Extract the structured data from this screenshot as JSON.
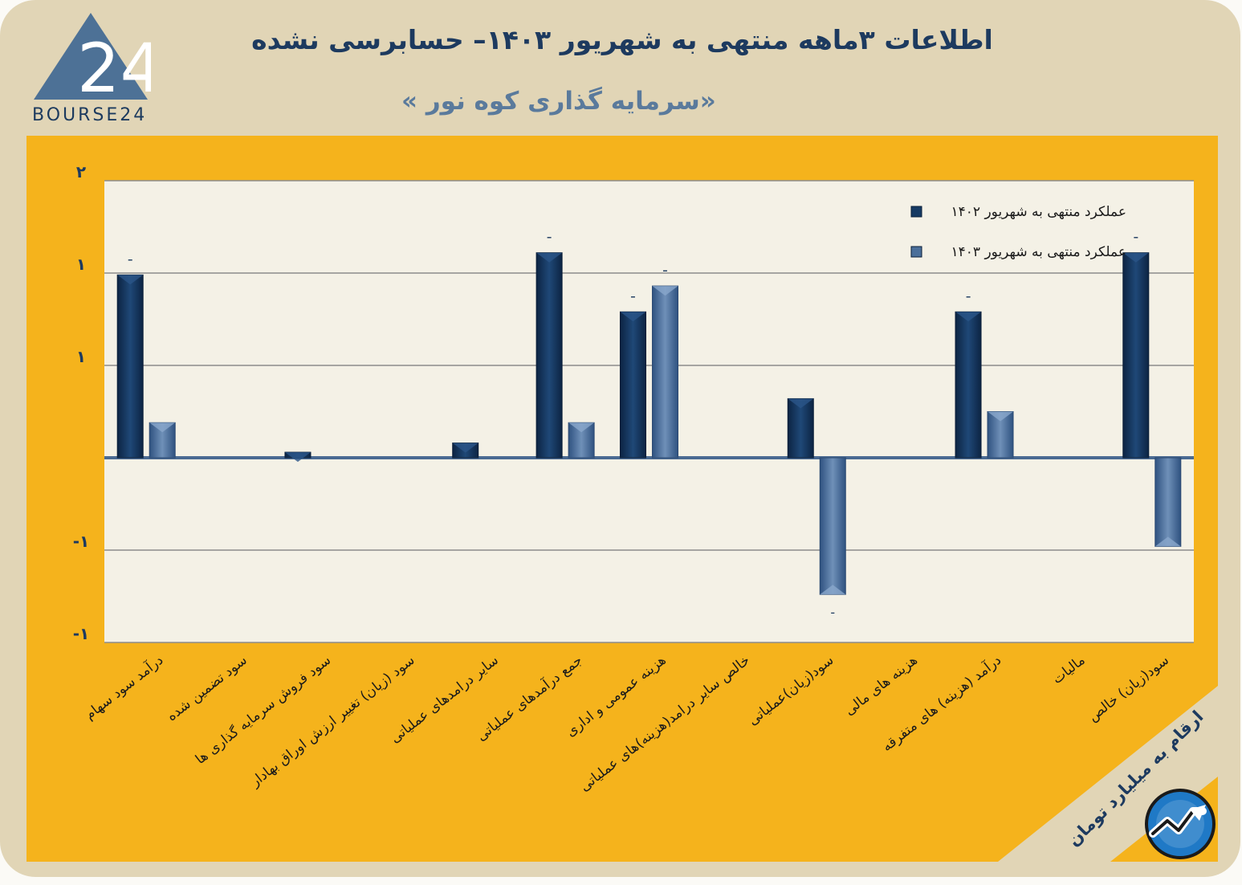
{
  "header": {
    "title": "اطلاعات ۳ماهه منتهی به شهریور ۱۴۰۳– حسابرسی نشده",
    "subtitle": "«سرمایه گذاری کوه نور »",
    "logo_text": "BOURSE24",
    "logo_mark": "24"
  },
  "unit_label": "ارقام به میلیارد تومان",
  "colors": {
    "background": "#e1d5b6",
    "panel": "#f5b31c",
    "series_1402": "#163a63",
    "series_1403": "#4b6f9a"
  },
  "chart_data": {
    "type": "bar",
    "y_tick_labels": [
      "۲",
      "۱",
      "۱",
      "-۱",
      "-۱"
    ],
    "grid": true,
    "legend_position": "top-right",
    "categories": [
      "درآمد سود سهام",
      "سود تضمین شده",
      "سود فروش سرمایه گذاری ها",
      "سود (زیان) تغییر ارزش اوراق بهادار",
      "سایر درامدهای عملیاتی",
      "جمع درآمدهای عملیاتی",
      "هزینه عمومی و اداری",
      "خالص سایر درامد(هزینه)های عملیاتی",
      "سود(زیان)عملیاتی",
      "هزینه های مالی",
      "درآمد (هزینه) های متفرقه",
      "مالیات",
      "سود(زیان) خالص"
    ],
    "series": [
      {
        "name": "عملکرد منتهی به شهریور ۱۴۰۲",
        "values": [
          0.99,
          0,
          0.03,
          0,
          0.08,
          1.11,
          0.79,
          0,
          0.32,
          0,
          0.79,
          0,
          1.11
        ]
      },
      {
        "name": "عملکرد منتهی به شهریور ۱۴۰۳",
        "values": [
          0.19,
          0,
          0,
          0,
          0,
          0.19,
          0.93,
          0,
          -0.74,
          0,
          0.25,
          0,
          -0.48
        ]
      }
    ],
    "data_labels_1402": [
      "ـ",
      "",
      "",
      "",
      "",
      "ـ",
      "ـ",
      "",
      "",
      "",
      "ـ",
      "",
      "ـ"
    ],
    "data_labels_1403": [
      "",
      "",
      "",
      "",
      "",
      "",
      "ـ",
      "",
      "-",
      "",
      "",
      "",
      ""
    ],
    "ylim": [
      -1,
      1.5
    ]
  }
}
